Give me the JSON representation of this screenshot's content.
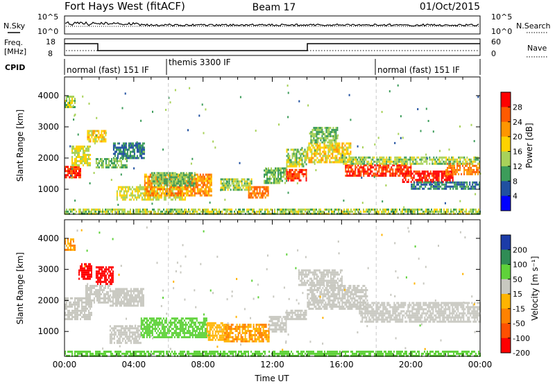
{
  "header": {
    "radar": "Fort Hays West (fitACF)",
    "beam": "Beam 17",
    "date": "01/Oct/2015"
  },
  "strips": {
    "nsky": {
      "label": "N.Sky",
      "ticks": [
        "10^5",
        "10^0"
      ]
    },
    "nsearch": {
      "label": "N.Search",
      "ticks": [
        "10^5",
        "10^0"
      ]
    },
    "freq": {
      "label_line1": "Freq.",
      "label_line2": "[MHz]",
      "ticks": [
        "18",
        "8"
      ]
    },
    "nave": {
      "label": "Nave",
      "ticks": [
        "60",
        "0"
      ]
    },
    "cpid": {
      "label": "CPID",
      "segments": [
        {
          "text": "normal (fast) 151 IF",
          "start_hour": 0,
          "end_hour": 6
        },
        {
          "text": "themis 3300 IF",
          "start_hour": 6,
          "end_hour": 18
        },
        {
          "text": "normal (fast) 151 IF",
          "start_hour": 18,
          "end_hour": 24
        }
      ]
    }
  },
  "chart_data": [
    {
      "type": "heatmap",
      "panel": "power",
      "ylabel": "Slant Range [km]",
      "xlabel": "",
      "xlim": [
        0,
        24
      ],
      "ylim": [
        200,
        4600
      ],
      "yticks": [
        1000,
        2000,
        3000,
        4000
      ],
      "colorbar_label": "Power [dB]",
      "colorbar_ticks": [
        "28",
        "24",
        "20",
        "16",
        "12",
        "8",
        "4"
      ],
      "colorbar_colors": [
        "#ff0000",
        "#ff5a00",
        "#ff9600",
        "#ffd200",
        "#a8d25a",
        "#3c9c5a",
        "#2050a0",
        "#0000ff"
      ],
      "regions": [
        {
          "t0": 0.0,
          "t1": 0.9,
          "r0": 1350,
          "r1": 1750,
          "value": 26
        },
        {
          "t0": 0.4,
          "t1": 1.5,
          "r0": 1750,
          "r1": 2400,
          "value": 14
        },
        {
          "t0": 0.0,
          "t1": 0.6,
          "r0": 3600,
          "r1": 4000,
          "value": 12
        },
        {
          "t0": 1.3,
          "t1": 2.4,
          "r0": 2500,
          "r1": 2900,
          "value": 16
        },
        {
          "t0": 1.8,
          "t1": 3.6,
          "r0": 1700,
          "r1": 2000,
          "value": 10
        },
        {
          "t0": 2.8,
          "t1": 4.6,
          "r0": 2000,
          "r1": 2500,
          "value": 6
        },
        {
          "t0": 3.0,
          "t1": 7.0,
          "r0": 650,
          "r1": 1100,
          "value": 14
        },
        {
          "t0": 4.6,
          "t1": 8.5,
          "r0": 800,
          "r1": 1500,
          "value": 20
        },
        {
          "t0": 5.0,
          "t1": 7.5,
          "r0": 1100,
          "r1": 1550,
          "value": 10
        },
        {
          "t0": 9.0,
          "t1": 10.8,
          "r0": 950,
          "r1": 1350,
          "value": 12
        },
        {
          "t0": 10.6,
          "t1": 11.8,
          "r0": 750,
          "r1": 1100,
          "value": 22
        },
        {
          "t0": 11.5,
          "t1": 12.8,
          "r0": 1200,
          "r1": 1700,
          "value": 10
        },
        {
          "t0": 12.8,
          "t1": 14.0,
          "r0": 1300,
          "r1": 1650,
          "value": 26
        },
        {
          "t0": 12.8,
          "t1": 14.0,
          "r0": 1700,
          "r1": 2300,
          "value": 12
        },
        {
          "t0": 14.0,
          "t1": 16.5,
          "r0": 1850,
          "r1": 2500,
          "value": 16
        },
        {
          "t0": 14.2,
          "t1": 15.8,
          "r0": 2500,
          "r1": 3000,
          "value": 10
        },
        {
          "t0": 16.2,
          "t1": 20.0,
          "r0": 1400,
          "r1": 1800,
          "value": 26
        },
        {
          "t0": 19.5,
          "t1": 22.4,
          "r0": 1250,
          "r1": 1600,
          "value": 28
        },
        {
          "t0": 22.0,
          "t1": 24.0,
          "r0": 1450,
          "r1": 1850,
          "value": 22
        },
        {
          "t0": 16.0,
          "t1": 24.0,
          "r0": 1800,
          "r1": 2050,
          "value": 12
        },
        {
          "t0": 20.0,
          "t1": 24.0,
          "r0": 1000,
          "r1": 1250,
          "value": 6
        },
        {
          "t0": 0.0,
          "t1": 24.0,
          "r0": 200,
          "r1": 380,
          "value": 12
        }
      ]
    },
    {
      "type": "heatmap",
      "panel": "velocity",
      "ylabel": "Slant Range [km]",
      "xlabel": "Time UT",
      "xlim": [
        0,
        24
      ],
      "ylim": [
        200,
        4600
      ],
      "yticks": [
        1000,
        2000,
        3000,
        4000
      ],
      "xticks": [
        "00:00",
        "04:00",
        "08:00",
        "12:00",
        "16:00",
        "20:00",
        "00:00"
      ],
      "colorbar_label": "Velocity [m s⁻¹]",
      "colorbar_ticks": [
        "200",
        "100",
        "50",
        "15",
        "-15",
        "-50",
        "-100",
        "-200"
      ],
      "colorbar_colors": [
        "#1c3ca8",
        "#2f8c55",
        "#5fd23a",
        "#c8c8c0",
        "#ffb400",
        "#ff8200",
        "#ff5000",
        "#ff0000"
      ],
      "regions": [
        {
          "t0": 0.0,
          "t1": 0.6,
          "r0": 3600,
          "r1": 4000,
          "value": -50
        },
        {
          "t0": 0.8,
          "t1": 1.6,
          "r0": 2700,
          "r1": 3200,
          "value": -200
        },
        {
          "t0": 1.8,
          "t1": 2.8,
          "r0": 2500,
          "r1": 3100,
          "value": -200
        },
        {
          "t0": 0.0,
          "t1": 1.6,
          "r0": 1400,
          "r1": 2100,
          "value": 0
        },
        {
          "t0": 1.2,
          "t1": 2.6,
          "r0": 1900,
          "r1": 2500,
          "value": 0
        },
        {
          "t0": 2.6,
          "t1": 4.6,
          "r0": 1800,
          "r1": 2400,
          "value": 0
        },
        {
          "t0": 2.6,
          "t1": 4.4,
          "r0": 650,
          "r1": 1200,
          "value": 0
        },
        {
          "t0": 4.4,
          "t1": 8.2,
          "r0": 800,
          "r1": 1450,
          "value": 30
        },
        {
          "t0": 8.2,
          "t1": 9.2,
          "r0": 700,
          "r1": 1300,
          "value": -40
        },
        {
          "t0": 9.2,
          "t1": 11.8,
          "r0": 700,
          "r1": 1250,
          "value": -50
        },
        {
          "t0": 11.8,
          "t1": 12.8,
          "r0": 1000,
          "r1": 1500,
          "value": 0
        },
        {
          "t0": 12.8,
          "t1": 14.0,
          "r0": 1400,
          "r1": 1700,
          "value": 0
        },
        {
          "t0": 14.0,
          "t1": 17.5,
          "r0": 1700,
          "r1": 2500,
          "value": 0
        },
        {
          "t0": 17.0,
          "t1": 24.0,
          "r0": 1300,
          "r1": 1950,
          "value": 0
        },
        {
          "t0": 13.5,
          "t1": 16.0,
          "r0": 2500,
          "r1": 3000,
          "value": 0
        },
        {
          "t0": 0.0,
          "t1": 24.0,
          "r0": 200,
          "r1": 380,
          "value": 20
        }
      ]
    }
  ]
}
